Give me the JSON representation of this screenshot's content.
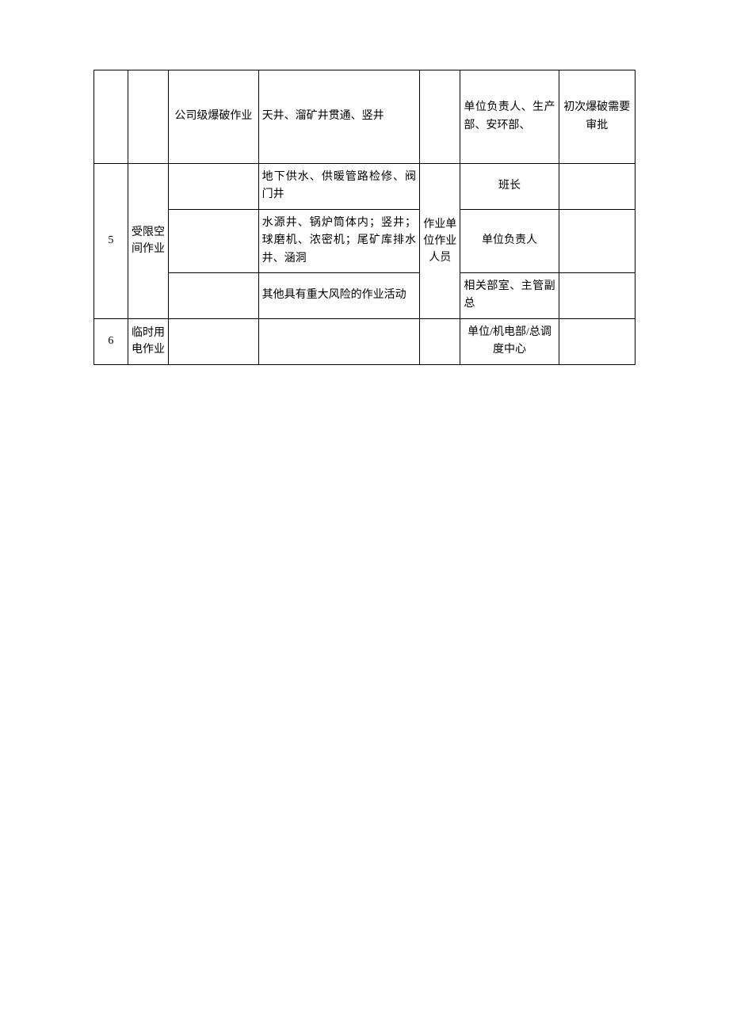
{
  "table": {
    "border_color": "#000000",
    "background_color": "#ffffff",
    "font_size": 14,
    "text_color": "#000000",
    "columns": {
      "col1_width": 40,
      "col2_width": 48,
      "col3_width": 106,
      "col4_width": 190,
      "col5_width": 48,
      "col6_width": 116,
      "col7_width": 90
    },
    "rows": [
      {
        "cells": {
          "c1": "",
          "c2": "",
          "c3": "公司级爆破作业",
          "c4": "天井、溜矿井贯通、竖井",
          "c5": "",
          "c6": "单位负责人、生产部、安环部、",
          "c7": "初次爆破需要审批"
        }
      },
      {
        "cells": {
          "c1": "5",
          "c2": "受限空间作业",
          "c3_r1": "",
          "c4_r1": "地下供水、供暖管路检修、阀门井",
          "c5": "作业单位作业人员",
          "c6_r1": "班长",
          "c7_r1": "",
          "c3_r2": "",
          "c4_r2": "水源井、锅炉筒体内；竖井；球磨机、浓密机；尾矿库排水井、涵洞",
          "c6_r2": "单位负责人",
          "c7_r2": "",
          "c3_r3": "",
          "c4_r3": "其他具有重大风险的作业活动",
          "c6_r3": "相关部室、主管副总",
          "c7_r3": ""
        }
      },
      {
        "cells": {
          "c1": "6",
          "c2": "临时用电作业",
          "c3": "",
          "c4": "",
          "c5": "",
          "c6": "单位/机电部/总调度中心",
          "c7": ""
        }
      }
    ]
  }
}
